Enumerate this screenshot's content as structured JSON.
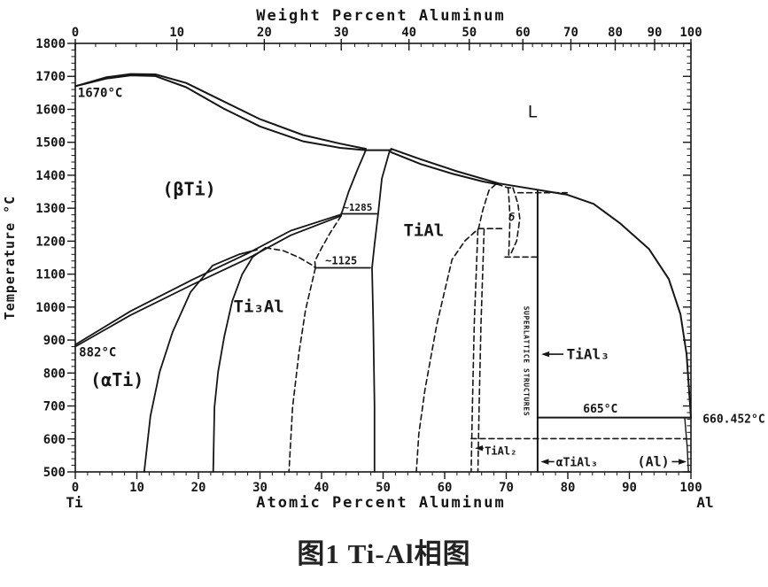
{
  "caption": "图1 Ti-Al相图",
  "chart_data": {
    "type": "line",
    "title": "Ti-Al binary phase diagram",
    "axes": {
      "top_title": "Weight Percent Aluminum",
      "bottom_title": "Atomic Percent Aluminum",
      "left_title": "Temperature °C",
      "left_corner": "Ti",
      "right_corner": "Al",
      "xlim": [
        0,
        100
      ],
      "ylim": [
        500,
        1800
      ],
      "x_ticks": [
        0,
        10,
        20,
        30,
        40,
        50,
        60,
        70,
        80,
        90,
        100
      ],
      "y_ticks": [
        500,
        600,
        700,
        800,
        900,
        1000,
        1100,
        1200,
        1300,
        1400,
        1500,
        1600,
        1700,
        1800
      ],
      "weight_ticks": [
        {
          "wt": 0,
          "at": 0
        },
        {
          "wt": 10,
          "at": 16.5
        },
        {
          "wt": 20,
          "at": 30.7
        },
        {
          "wt": 30,
          "at": 43.2
        },
        {
          "wt": 40,
          "at": 54.2
        },
        {
          "wt": 50,
          "at": 64.0
        },
        {
          "wt": 60,
          "at": 72.7
        },
        {
          "wt": 70,
          "at": 80.5
        },
        {
          "wt": 80,
          "at": 87.7
        },
        {
          "wt": 90,
          "at": 94.1
        },
        {
          "wt": 100,
          "at": 100
        }
      ]
    },
    "curves": [
      {
        "name": "liquidus-left",
        "style": "solid",
        "w": 2,
        "points": [
          [
            0,
            1670
          ],
          [
            5,
            1697
          ],
          [
            9,
            1707
          ],
          [
            13,
            1706
          ],
          [
            18,
            1680
          ],
          [
            24,
            1625
          ],
          [
            30,
            1570
          ],
          [
            37,
            1522
          ],
          [
            43,
            1496
          ],
          [
            47.2,
            1480
          ]
        ]
      },
      {
        "name": "beta-solidus",
        "style": "solid",
        "w": 2,
        "points": [
          [
            0,
            1670
          ],
          [
            5,
            1693
          ],
          [
            9,
            1703
          ],
          [
            13,
            1701
          ],
          [
            18,
            1667
          ],
          [
            24,
            1603
          ],
          [
            30,
            1548
          ],
          [
            37,
            1503
          ],
          [
            43,
            1483
          ],
          [
            47.2,
            1476
          ]
        ]
      },
      {
        "name": "peritectic-tie",
        "style": "solid",
        "w": 2,
        "points": [
          [
            47.2,
            1476
          ],
          [
            51.3,
            1476
          ]
        ]
      },
      {
        "name": "beta-gamma-left",
        "style": "solid",
        "w": 1.8,
        "points": [
          [
            47.2,
            1476
          ],
          [
            45.9,
            1420
          ],
          [
            44.4,
            1350
          ],
          [
            43.4,
            1292
          ],
          [
            43.2,
            1283
          ]
        ]
      },
      {
        "name": "tie-1285",
        "style": "solid",
        "w": 1.8,
        "points": [
          [
            43.2,
            1283
          ],
          [
            49.2,
            1283
          ]
        ]
      },
      {
        "name": "gamma-left",
        "style": "solid",
        "w": 1.8,
        "points": [
          [
            51.1,
            1476
          ],
          [
            49.8,
            1390
          ],
          [
            49.2,
            1283
          ],
          [
            48.6,
            1190
          ],
          [
            48.2,
            1119
          ],
          [
            48.4,
            950
          ],
          [
            48.6,
            700
          ],
          [
            48.6,
            500
          ]
        ]
      },
      {
        "name": "beta-transus-upper",
        "style": "solid",
        "w": 1.8,
        "points": [
          [
            0,
            886
          ],
          [
            9,
            988
          ],
          [
            19,
            1083
          ],
          [
            28,
            1163
          ],
          [
            35,
            1232
          ],
          [
            43.2,
            1281
          ]
        ]
      },
      {
        "name": "beta-transus-lower",
        "style": "solid",
        "w": 1.8,
        "points": [
          [
            0,
            880
          ],
          [
            9,
            976
          ],
          [
            19,
            1068
          ],
          [
            28,
            1147
          ],
          [
            35,
            1218
          ],
          [
            43.2,
            1277
          ]
        ]
      },
      {
        "name": "alpha-alpha2-boundary",
        "style": "solid",
        "w": 1.8,
        "points": [
          [
            11.2,
            500
          ],
          [
            12.2,
            669
          ],
          [
            13.7,
            803
          ],
          [
            15.8,
            924
          ],
          [
            18.7,
            1045
          ],
          [
            22.3,
            1126
          ],
          [
            26.6,
            1160
          ],
          [
            29.5,
            1174
          ]
        ]
      },
      {
        "name": "alpha2-left-boundary",
        "style": "solid",
        "w": 1.8,
        "points": [
          [
            22.4,
            500
          ],
          [
            22.6,
            696
          ],
          [
            23.2,
            803
          ],
          [
            24.2,
            911
          ],
          [
            25.5,
            1018
          ],
          [
            27.1,
            1099
          ],
          [
            28.8,
            1152
          ],
          [
            30.9,
            1180
          ]
        ]
      },
      {
        "name": "alpha2-dome-right-dashed",
        "style": "dashed",
        "w": 1.6,
        "points": [
          [
            30.9,
            1180
          ],
          [
            33.8,
            1171
          ],
          [
            36.4,
            1150
          ],
          [
            38.4,
            1128
          ],
          [
            39,
            1119
          ]
        ]
      },
      {
        "name": "alpha2-gamma-boundary-dashed",
        "style": "dashed",
        "w": 1.6,
        "points": [
          [
            39,
            1119
          ],
          [
            37.4,
            991
          ],
          [
            36.3,
            857
          ],
          [
            35.3,
            696
          ],
          [
            34.7,
            500
          ]
        ]
      },
      {
        "name": "beta-alpha2-dashed",
        "style": "dashed",
        "w": 1.6,
        "points": [
          [
            43.2,
            1277
          ],
          [
            41.4,
            1225
          ],
          [
            40,
            1179
          ],
          [
            38.9,
            1139
          ],
          [
            39,
            1119
          ]
        ]
      },
      {
        "name": "tie-1125",
        "style": "solid",
        "w": 1.8,
        "points": [
          [
            39,
            1119
          ],
          [
            47.9,
            1119
          ]
        ]
      },
      {
        "name": "gamma-liquidus",
        "style": "solid",
        "w": 2,
        "points": [
          [
            51.3,
            1480
          ],
          [
            56,
            1449
          ],
          [
            62,
            1412
          ],
          [
            68.8,
            1375
          ],
          [
            74.1,
            1359
          ],
          [
            79.9,
            1341
          ],
          [
            84.2,
            1313
          ],
          [
            88.5,
            1254
          ],
          [
            93.2,
            1176
          ],
          [
            96.4,
            1085
          ],
          [
            98.3,
            978
          ],
          [
            99.3,
            857
          ],
          [
            100,
            664
          ]
        ]
      },
      {
        "name": "gamma-solidus",
        "style": "solid",
        "w": 2,
        "points": [
          [
            51.3,
            1470
          ],
          [
            56.1,
            1434
          ],
          [
            61.2,
            1405
          ],
          [
            66.2,
            1381
          ],
          [
            68.5,
            1373
          ]
        ]
      },
      {
        "name": "gamma-right-dashed",
        "style": "dashed",
        "w": 1.6,
        "points": [
          [
            68.3,
            1373
          ],
          [
            67.2,
            1354
          ],
          [
            66.2,
            1295
          ],
          [
            65.5,
            1238
          ],
          [
            63.3,
            1201
          ],
          [
            61.2,
            1144
          ],
          [
            58.7,
            946
          ],
          [
            56.8,
            750
          ],
          [
            55.8,
            615
          ],
          [
            55.4,
            500
          ]
        ]
      },
      {
        "name": "tie-1240-dashed",
        "style": "dashed",
        "w": 1.6,
        "points": [
          [
            65.5,
            1238
          ],
          [
            69.8,
            1238
          ]
        ]
      },
      {
        "name": "delta-left-dashed",
        "style": "dashed",
        "w": 1.6,
        "points": [
          [
            70.3,
            1362
          ],
          [
            70.5,
            1313
          ],
          [
            70.6,
            1268
          ],
          [
            70.5,
            1206
          ],
          [
            70.4,
            1158
          ]
        ]
      },
      {
        "name": "delta-right-dashed",
        "style": "dashed",
        "w": 1.6,
        "points": [
          [
            71.1,
            1362
          ],
          [
            71.9,
            1313
          ],
          [
            72.2,
            1268
          ],
          [
            71.7,
            1201
          ],
          [
            70.6,
            1155
          ]
        ]
      },
      {
        "name": "delta-top-dashed",
        "style": "dashed",
        "w": 1.6,
        "points": [
          [
            68.5,
            1373
          ],
          [
            70.3,
            1362
          ],
          [
            71.1,
            1362
          ]
        ]
      },
      {
        "name": "tie-1150-dashed",
        "style": "dashed",
        "w": 1.6,
        "points": [
          [
            69.8,
            1152
          ],
          [
            75.1,
            1152
          ]
        ]
      },
      {
        "name": "tie-1347-dashed",
        "style": "dashed",
        "w": 1.6,
        "points": [
          [
            71.9,
            1347
          ],
          [
            79.9,
            1347
          ]
        ]
      },
      {
        "name": "tial2-left-dashed",
        "style": "dashed",
        "w": 1.6,
        "points": [
          [
            65.4,
            1235
          ],
          [
            64.8,
            950
          ],
          [
            64.5,
            700
          ],
          [
            64.3,
            500
          ]
        ]
      },
      {
        "name": "tial2-right-dashed",
        "style": "dashed",
        "w": 1.6,
        "points": [
          [
            66.4,
            1235
          ],
          [
            65.9,
            950
          ],
          [
            65.6,
            700
          ],
          [
            65.4,
            500
          ]
        ]
      },
      {
        "name": "tial3-line",
        "style": "solid",
        "w": 2,
        "points": [
          [
            75.1,
            1352
          ],
          [
            75.1,
            500
          ]
        ]
      },
      {
        "name": "line-665",
        "style": "solid",
        "w": 2,
        "points": [
          [
            75.1,
            665
          ],
          [
            100,
            665
          ]
        ]
      },
      {
        "name": "line-600-dashed",
        "style": "dashed",
        "w": 1.6,
        "points": [
          [
            64.3,
            601
          ],
          [
            99.3,
            601
          ]
        ]
      },
      {
        "name": "al-solvus",
        "style": "solid",
        "w": 1.4,
        "points": [
          [
            99.0,
            664
          ],
          [
            99.4,
            575
          ],
          [
            99.6,
            500
          ]
        ]
      }
    ],
    "annotations": [
      {
        "name": "label-1670",
        "text": "1670°C",
        "x": 0.4,
        "y": 1637,
        "anchor": "start",
        "size": 14,
        "bold": true
      },
      {
        "name": "label-882",
        "text": "882°C",
        "x": 0.6,
        "y": 851,
        "anchor": "start",
        "size": 14,
        "bold": true
      },
      {
        "name": "label-beta-ti",
        "text": "(βTi)",
        "x": 18.5,
        "y": 1340,
        "anchor": "middle",
        "size": 20,
        "bold": true
      },
      {
        "name": "label-alpha-ti",
        "text": "(αTi)",
        "x": 6.8,
        "y": 760,
        "anchor": "middle",
        "size": 20,
        "bold": true
      },
      {
        "name": "label-ti3al",
        "text": "Ti₃Al",
        "x": 29.8,
        "y": 985,
        "anchor": "middle",
        "size": 19,
        "bold": true
      },
      {
        "name": "label-tial",
        "text": "TiAl",
        "x": 56.6,
        "y": 1216,
        "anchor": "middle",
        "size": 19,
        "bold": true
      },
      {
        "name": "label-liquid",
        "text": "L",
        "x": 74.3,
        "y": 1576,
        "anchor": "middle",
        "size": 19,
        "bold": false
      },
      {
        "name": "label-1285",
        "text": "~1285",
        "x": 43.5,
        "y": 1292,
        "anchor": "start",
        "size": 11,
        "bold": true
      },
      {
        "name": "label-1125",
        "text": "~1125",
        "x": 40.6,
        "y": 1130,
        "anchor": "start",
        "size": 12,
        "bold": true
      },
      {
        "name": "label-delta",
        "text": "δ",
        "x": 70.9,
        "y": 1262,
        "anchor": "middle",
        "size": 12,
        "bold": true,
        "italic": true
      },
      {
        "name": "label-superlattice",
        "text": "SUPERLATTICE STRUCTURES",
        "x": 72.9,
        "y": 836,
        "anchor": "middle",
        "size": 8,
        "bold": true,
        "rotate": 90,
        "spacing": 0.6
      },
      {
        "name": "label-tial3",
        "text": "TiAl₃",
        "x": 79.8,
        "y": 842,
        "anchor": "start",
        "size": 16,
        "bold": true
      },
      {
        "name": "label-665",
        "text": "665°C",
        "x": 85.3,
        "y": 680,
        "anchor": "middle",
        "size": 13,
        "bold": true
      },
      {
        "name": "label-660-452",
        "text": "660.452°C",
        "x": 101.9,
        "y": 649,
        "anchor": "start",
        "size": 13,
        "bold": true
      },
      {
        "name": "label-tial2",
        "text": "TiAl₂",
        "x": 66.5,
        "y": 553,
        "anchor": "start",
        "size": 12,
        "bold": true
      },
      {
        "name": "label-alpha-tial3",
        "text": "αTiAl₃",
        "x": 78.1,
        "y": 518,
        "anchor": "start",
        "size": 13,
        "bold": true
      },
      {
        "name": "label-al-phase",
        "text": "(Al)",
        "x": 96.5,
        "y": 518,
        "anchor": "end",
        "size": 15,
        "bold": true
      }
    ],
    "arrows": [
      {
        "name": "arrow-tial3",
        "x1": 79.3,
        "y1": 857,
        "x2": 75.7,
        "y2": 857
      },
      {
        "name": "arrow-tial2",
        "x1": 66.3,
        "y1": 572,
        "x2": 64.9,
        "y2": 572
      },
      {
        "name": "arrow-alpha-tial3",
        "x1": 77.8,
        "y1": 531,
        "x2": 75.6,
        "y2": 531
      },
      {
        "name": "arrow-al",
        "x1": 96.9,
        "y1": 531,
        "x2": 99.3,
        "y2": 531
      }
    ]
  }
}
